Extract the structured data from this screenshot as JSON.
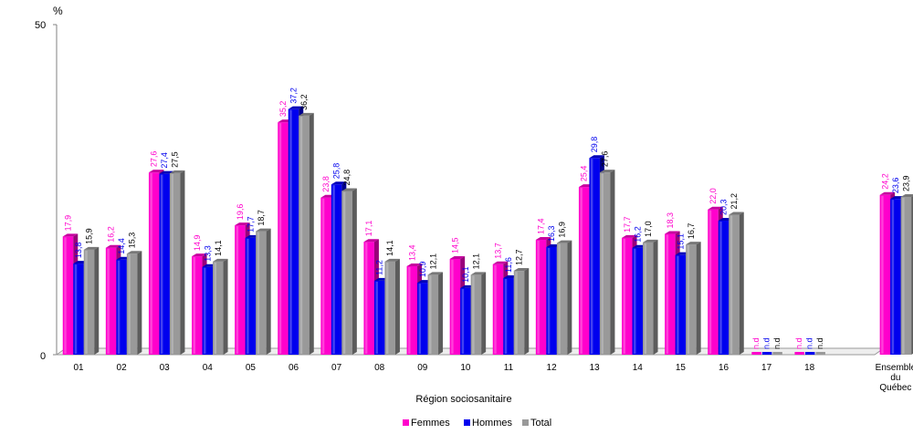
{
  "chart_data": {
    "type": "bar",
    "y_unit": "%",
    "ylim": [
      0,
      50
    ],
    "y_ticks": [
      "0",
      "50"
    ],
    "grid": false,
    "legend_position": "bottom",
    "xlabel": "Région sociosanitaire",
    "ylabel": "",
    "categories": [
      "01",
      "02",
      "03",
      "04",
      "05",
      "06",
      "07",
      "08",
      "09",
      "10",
      "11",
      "12",
      "13",
      "14",
      "15",
      "16",
      "17",
      "18",
      "",
      "Ensemble du Québec"
    ],
    "series": [
      {
        "name": "Femmes",
        "color": "#ff00cc",
        "values": [
          17.9,
          16.2,
          27.6,
          14.9,
          19.6,
          35.2,
          23.8,
          17.1,
          13.4,
          14.5,
          13.7,
          17.4,
          25.4,
          17.7,
          18.3,
          22.0,
          null,
          null,
          null,
          24.2
        ],
        "labels": [
          "17,9",
          "16,2",
          "27,6",
          "14,9",
          "19,6",
          "35,2",
          "23,8",
          "17,1",
          "13,4",
          "14,5",
          "13,7",
          "17,4",
          "25,4",
          "17,7",
          "18,3",
          "22,0",
          "n.d",
          "n.d",
          "",
          "24,2"
        ]
      },
      {
        "name": "Hommes",
        "color": "#0000ee",
        "values": [
          13.8,
          14.4,
          27.4,
          13.3,
          17.7,
          37.2,
          25.8,
          11.2,
          10.9,
          10.1,
          11.6,
          16.3,
          29.8,
          16.2,
          15.1,
          20.3,
          null,
          null,
          null,
          23.6
        ],
        "labels": [
          "13,8",
          "14,4",
          "27,4",
          "13,3",
          "17,7",
          "37,2",
          "25,8",
          "11,2",
          "10,9",
          "10,1",
          "11,6",
          "16,3",
          "29,8",
          "16,2",
          "15,1",
          "20,3",
          "n.d",
          "n.d",
          "",
          "23,6"
        ]
      },
      {
        "name": "Total",
        "color": "#999999",
        "values": [
          15.9,
          15.3,
          27.5,
          14.1,
          18.7,
          36.2,
          24.8,
          14.1,
          12.1,
          12.1,
          12.7,
          16.9,
          27.6,
          17.0,
          16.7,
          21.2,
          null,
          null,
          null,
          23.9
        ],
        "labels": [
          "15,9",
          "15,3",
          "27,5",
          "14,1",
          "18,7",
          "36,2",
          "24,8",
          "14,1",
          "12,1",
          "12,1",
          "12,7",
          "16,9",
          "27,6",
          "17,0",
          "16,7",
          "21,2",
          "n.d",
          "n.d",
          "",
          "23,9"
        ]
      }
    ]
  }
}
